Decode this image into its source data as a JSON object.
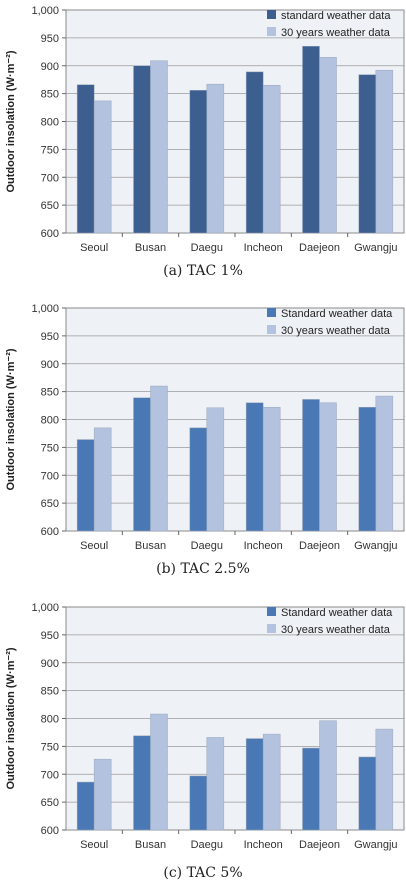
{
  "chart_data": [
    {
      "type": "bar",
      "caption": "(a)  TAC  1%",
      "ylabel": "Outdoor insolation (W·m⁻²)",
      "ylim": [
        600,
        1000
      ],
      "yticks": [
        "600",
        "650",
        "700",
        "750",
        "800",
        "850",
        "900",
        "950",
        "1,000"
      ],
      "categories": [
        "Seoul",
        "Busan",
        "Daegu",
        "Incheon",
        "Daejeon",
        "Gwangju"
      ],
      "series": [
        {
          "name": "standard weather data",
          "color": "#3c5f8f",
          "values": [
            866,
            900,
            856,
            889,
            935,
            884
          ]
        },
        {
          "name": "30 years weather data",
          "color": "#b3c2de",
          "values": [
            837,
            909,
            867,
            865,
            915,
            892
          ]
        }
      ],
      "grid": true,
      "legend": "top-right"
    },
    {
      "type": "bar",
      "caption": "(b)  TAC  2.5%",
      "ylabel": "Outdoor insolation (W·m⁻²)",
      "ylim": [
        600,
        1000
      ],
      "yticks": [
        "600",
        "650",
        "700",
        "750",
        "800",
        "850",
        "900",
        "950",
        "1,000"
      ],
      "categories": [
        "Seoul",
        "Busan",
        "Daegu",
        "Incheon",
        "Daejeon",
        "Gwangju"
      ],
      "series": [
        {
          "name": "Standard weather data",
          "color": "#4a78b4",
          "values": [
            764,
            839,
            785,
            830,
            836,
            822
          ]
        },
        {
          "name": "30 years weather data",
          "color": "#b3c2de",
          "values": [
            785,
            860,
            821,
            822,
            830,
            842
          ]
        }
      ],
      "grid": true,
      "legend": "top-right"
    },
    {
      "type": "bar",
      "caption": "(c)  TAC  5%",
      "ylabel": "Outdoor insolation (W·m⁻²)",
      "ylim": [
        600,
        1000
      ],
      "yticks": [
        "600",
        "650",
        "700",
        "750",
        "800",
        "850",
        "900",
        "950",
        "1,000"
      ],
      "categories": [
        "Seoul",
        "Busan",
        "Daegu",
        "Incheon",
        "Daejeon",
        "Gwangju"
      ],
      "series": [
        {
          "name": "Standard weather data",
          "color": "#4a78b4",
          "values": [
            686,
            769,
            697,
            764,
            747,
            731
          ]
        },
        {
          "name": "30 years weather data",
          "color": "#b3c2de",
          "values": [
            727,
            808,
            766,
            772,
            796,
            781
          ]
        }
      ],
      "grid": true,
      "legend": "top-right"
    }
  ]
}
